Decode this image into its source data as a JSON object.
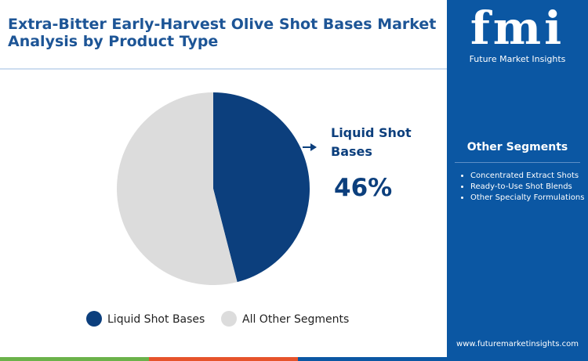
{
  "chart_data": {
    "type": "pie",
    "title": "Extra-Bitter Early-Harvest Olive Shot Bases Market Analysis by Product Type",
    "categories": [
      "Liquid Shot Bases",
      "All Other Segments"
    ],
    "values": [
      46,
      54
    ],
    "value_labels": [
      "46%",
      null
    ],
    "colors": [
      "#0c3f7d",
      "#dcdcdc"
    ]
  },
  "brand": {
    "logo": "fmi",
    "name": "Future Market Insights"
  },
  "sidebar": {
    "heading": "Other Segments",
    "items": [
      "Concentrated Extract Shots",
      "Ready-to-Use Shot Blends",
      "Other Specialty Formulations"
    ]
  },
  "website": "www.futuremarketinsights.com"
}
